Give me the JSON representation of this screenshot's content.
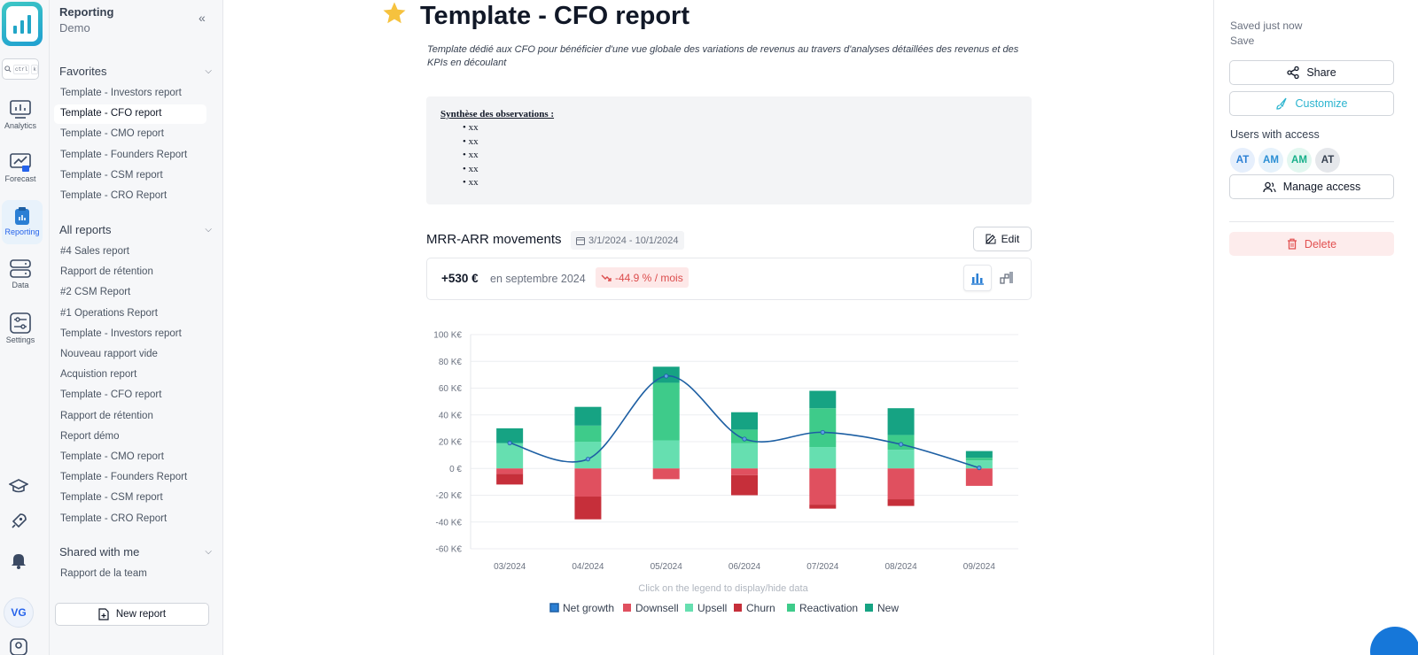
{
  "sidebar": {
    "title": "Reporting",
    "workspace": "Demo",
    "favorites_label": "Favorites",
    "favorites": [
      "Template - Investors report",
      "Template - CFO report",
      "Template - CMO report",
      "Template - Founders Report",
      "Template - CSM report",
      "Template - CRO Report"
    ],
    "all_reports_label": "All reports",
    "all_reports": [
      "#4 Sales report",
      "Rapport de rétention",
      "#2 CSM Report",
      "#1 Operations Report",
      "Template - Investors report",
      "Nouveau rapport vide",
      "Acquistion report",
      "Template - CFO report",
      "Rapport de rétention",
      "Report démo",
      "Template - CMO report",
      "Template - Founders Report",
      "Template - CSM report",
      "Template - CRO Report"
    ],
    "shared_label": "Shared with me",
    "shared": [
      "Rapport de la team"
    ],
    "new_report": "New report"
  },
  "rail": {
    "search_keys": [
      "ctrl",
      "k"
    ],
    "items": [
      {
        "label": "Analytics",
        "icon": "analytics-icon"
      },
      {
        "label": "Forecast",
        "icon": "forecast-icon"
      },
      {
        "label": "Reporting",
        "icon": "reporting-icon"
      },
      {
        "label": "Data",
        "icon": "data-icon"
      },
      {
        "label": "Settings",
        "icon": "settings-icon"
      }
    ],
    "user_initials": "VG"
  },
  "main": {
    "title": "Template - CFO report",
    "description": "Template dédié aux CFO pour bénéficier d'une vue globale des variations de revenus au travers d'analyses détaillées des revenus et des KPIs en découlant",
    "observations_title": "Synthèse des observations :",
    "observations": [
      "xx",
      "xx",
      "xx",
      "xx",
      "xx"
    ],
    "section_title": "MRR-ARR movements",
    "date_range": "3/1/2024 - 10/1/2024",
    "edit_label": "Edit",
    "kpi_value": "+530 €",
    "kpi_period": "en septembre 2024",
    "kpi_change": "-44.9 % / mois",
    "legend_hint": "Click on the legend to display/hide data"
  },
  "right": {
    "saved_status": "Saved just now",
    "save_label": "Save",
    "share_label": "Share",
    "customize_label": "Customize",
    "users_label": "Users with access",
    "users": [
      "AT",
      "AM",
      "AM",
      "AT"
    ],
    "manage_label": "Manage access",
    "delete_label": "Delete"
  },
  "colors": {
    "accent": "#2563eb",
    "teal": "#2bb4cf",
    "danger": "#e25050"
  },
  "chart_data": {
    "type": "bar",
    "stacked": true,
    "categories": [
      "03/2024",
      "04/2024",
      "05/2024",
      "06/2024",
      "07/2024",
      "08/2024",
      "09/2024"
    ],
    "yticks": [
      "100 K€",
      "80 K€",
      "60 K€",
      "40 K€",
      "20 K€",
      "0 €",
      "-20 K€",
      "-40 K€",
      "-60 K€"
    ],
    "ylim": [
      -60,
      100
    ],
    "series": [
      {
        "name": "Upsell",
        "color": "#66dfb0",
        "values": [
          19,
          20,
          21,
          19,
          16,
          14,
          6
        ]
      },
      {
        "name": "Reactivation",
        "color": "#3ecb8a",
        "values": [
          0,
          12,
          43,
          10,
          29,
          11,
          2
        ]
      },
      {
        "name": "New",
        "color": "#16a383",
        "values": [
          11,
          14,
          12,
          13,
          13,
          20,
          5
        ]
      },
      {
        "name": "Downsell",
        "color": "#e0505f",
        "values": [
          -4,
          -21,
          -8,
          -5,
          -27,
          -23,
          -13
        ]
      },
      {
        "name": "Churn",
        "color": "#c62f3a",
        "values": [
          -8,
          -17,
          0,
          -15,
          -3,
          -5,
          0
        ]
      }
    ],
    "line": {
      "name": "Net growth",
      "color": "#1d5fa3",
      "values": [
        19,
        7,
        69,
        22,
        27,
        18,
        0.5
      ]
    },
    "legend": [
      {
        "name": "Net growth",
        "color": "#2b7fd4",
        "border": "#1d5fa3"
      },
      {
        "name": "Downsell",
        "color": "#e0505f"
      },
      {
        "name": "Upsell",
        "color": "#66dfb0"
      },
      {
        "name": "Churn",
        "color": "#c62f3a"
      },
      {
        "name": "Reactivation",
        "color": "#3ecb8a"
      },
      {
        "name": "New",
        "color": "#16a383"
      }
    ],
    "legend_position": "bottom",
    "grid": true
  }
}
